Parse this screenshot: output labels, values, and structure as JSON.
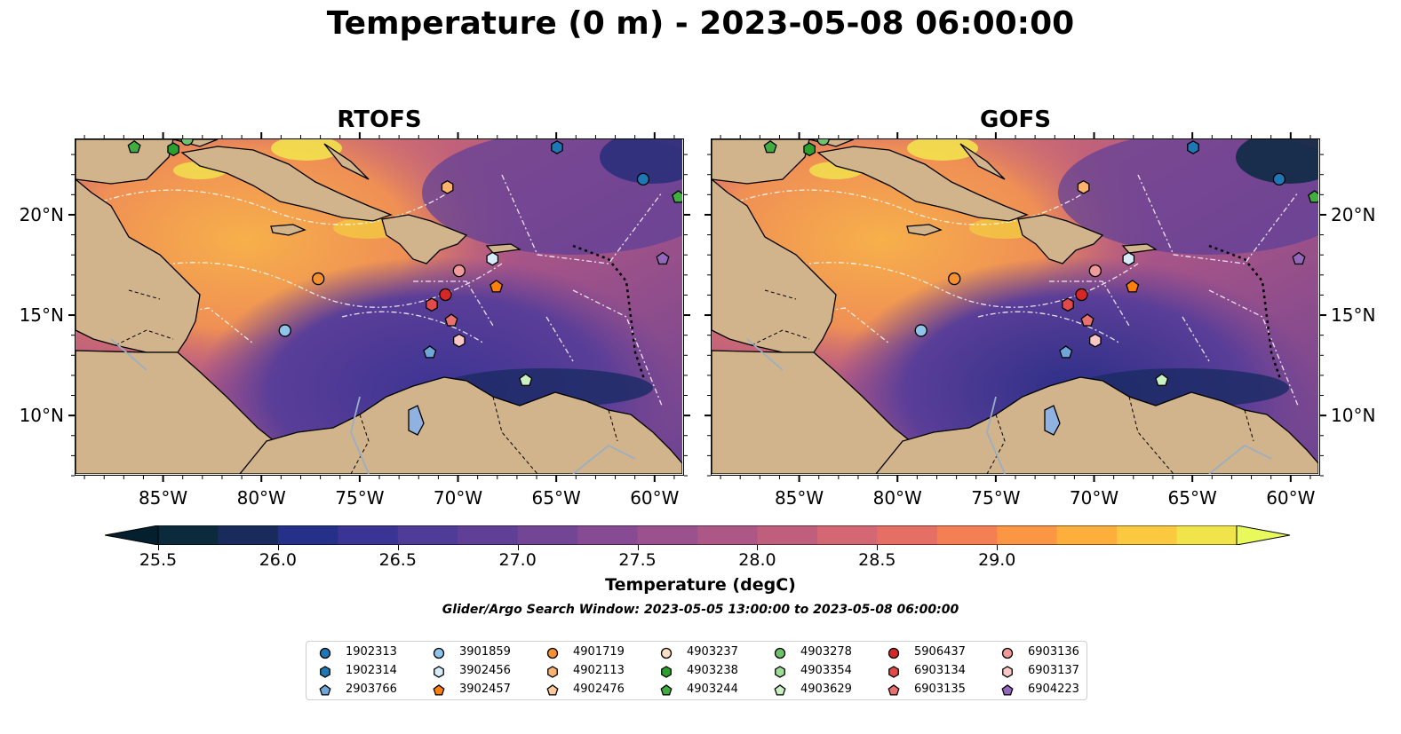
{
  "title": "Temperature (0 m) - 2023-05-08 06:00:00",
  "panels": [
    {
      "title": "RTOFS"
    },
    {
      "title": "GOFS"
    }
  ],
  "lon_ticks": [
    "85°W",
    "80°W",
    "75°W",
    "70°W",
    "65°W",
    "60°W"
  ],
  "lat_ticks": [
    "20°N",
    "15°N",
    "10°N"
  ],
  "colorbar": {
    "label": "Temperature (degC)",
    "ticks": [
      "25.5",
      "26.0",
      "26.5",
      "27.0",
      "27.5",
      "28.0",
      "28.5",
      "29.0"
    ],
    "colors": [
      "#0b2a3c",
      "#182b5c",
      "#253189",
      "#3a3495",
      "#4f3c98",
      "#603f96",
      "#734595",
      "#864b92",
      "#9a518d",
      "#ad5786",
      "#c05e7d",
      "#d46774",
      "#e56f65",
      "#f47f55",
      "#fb9645",
      "#fdae3b",
      "#fbc93f",
      "#f1e44b"
    ],
    "min_color": "#04202e",
    "max_color": "#e8fa5b"
  },
  "search_window": "Glider/Argo Search Window: 2023-05-05 13:00:00 to 2023-05-08 06:00:00",
  "legend": [
    {
      "id": "1902313",
      "marker": "circle",
      "color": "#1f77b4"
    },
    {
      "id": "1902314",
      "marker": "hexagon",
      "color": "#1f77b4"
    },
    {
      "id": "2903766",
      "marker": "pentagon",
      "color": "#6fa6d8"
    },
    {
      "id": "3901859",
      "marker": "circle",
      "color": "#8fc5ea"
    },
    {
      "id": "3902456",
      "marker": "hexagon",
      "color": "#d6ecfb"
    },
    {
      "id": "3902457",
      "marker": "pentagon",
      "color": "#ff7f0e"
    },
    {
      "id": "4901719",
      "marker": "circle",
      "color": "#f7902e"
    },
    {
      "id": "4902113",
      "marker": "hexagon",
      "color": "#fbb36e"
    },
    {
      "id": "4902476",
      "marker": "pentagon",
      "color": "#fcc99a"
    },
    {
      "id": "4903237",
      "marker": "circle",
      "color": "#fde0c4"
    },
    {
      "id": "4903238",
      "marker": "hexagon",
      "color": "#2ca02c"
    },
    {
      "id": "4903244",
      "marker": "pentagon",
      "color": "#41ad41"
    },
    {
      "id": "4903278",
      "marker": "circle",
      "color": "#6cc36c"
    },
    {
      "id": "4903354",
      "marker": "hexagon",
      "color": "#9edc98"
    },
    {
      "id": "4903629",
      "marker": "pentagon",
      "color": "#c8f0c2"
    },
    {
      "id": "5906437",
      "marker": "circle",
      "color": "#d62728"
    },
    {
      "id": "6903134",
      "marker": "hexagon",
      "color": "#e04a4a"
    },
    {
      "id": "6903135",
      "marker": "pentagon",
      "color": "#ea7070"
    },
    {
      "id": "6903136",
      "marker": "circle",
      "color": "#f29a9a"
    },
    {
      "id": "6903137",
      "marker": "hexagon",
      "color": "#fbc6c6"
    },
    {
      "id": "6904223",
      "marker": "pentagon",
      "color": "#9467bd"
    }
  ],
  "floats": [
    {
      "id": "4903244",
      "marker": "pentagon",
      "color": "#41ad41",
      "lon": -86.5,
      "lat": 23.4
    },
    {
      "id": "4903238",
      "marker": "hexagon",
      "color": "#2ca02c",
      "lon": -84.5,
      "lat": 23.3
    },
    {
      "id": "4903278",
      "marker": "circle",
      "color": "#6cc36c",
      "lon": -83.8,
      "lat": 23.8
    },
    {
      "id": "1902314",
      "marker": "hexagon",
      "color": "#1f77b4",
      "lon": -64.9,
      "lat": 23.4
    },
    {
      "id": "1902313",
      "marker": "circle",
      "color": "#1f77b4",
      "lon": -60.5,
      "lat": 21.8
    },
    {
      "id": "4903244",
      "marker": "pentagon",
      "color": "#41ad41",
      "lon": -58.7,
      "lat": 20.9
    },
    {
      "id": "4902113",
      "marker": "hexagon",
      "color": "#fbb36e",
      "lon": -70.5,
      "lat": 21.4
    },
    {
      "id": "3902456",
      "marker": "hexagon",
      "color": "#d6ecfb",
      "lon": -68.2,
      "lat": 17.8
    },
    {
      "id": "6904223",
      "marker": "pentagon",
      "color": "#9467bd",
      "lon": -59.5,
      "lat": 17.8
    },
    {
      "id": "6903136",
      "marker": "circle",
      "color": "#f29a9a",
      "lon": -69.9,
      "lat": 17.2
    },
    {
      "id": "4901719",
      "marker": "circle",
      "color": "#f7902e",
      "lon": -77.1,
      "lat": 16.8
    },
    {
      "id": "3902457",
      "marker": "pentagon",
      "color": "#ff7f0e",
      "lon": -68.0,
      "lat": 16.4
    },
    {
      "id": "5906437",
      "marker": "circle",
      "color": "#d62728",
      "lon": -70.6,
      "lat": 16.0
    },
    {
      "id": "6903134",
      "marker": "hexagon",
      "color": "#e04a4a",
      "lon": -71.3,
      "lat": 15.5
    },
    {
      "id": "6903135",
      "marker": "pentagon",
      "color": "#ea7070",
      "lon": -70.3,
      "lat": 14.7
    },
    {
      "id": "3901859",
      "marker": "circle",
      "color": "#8fc5ea",
      "lon": -78.8,
      "lat": 14.2
    },
    {
      "id": "6903137",
      "marker": "hexagon",
      "color": "#fbc6c6",
      "lon": -69.9,
      "lat": 13.7
    },
    {
      "id": "2903766",
      "marker": "pentagon",
      "color": "#6fa6d8",
      "lon": -71.4,
      "lat": 13.1
    },
    {
      "id": "4903629",
      "marker": "pentagon",
      "color": "#c8f0c2",
      "lon": -66.5,
      "lat": 11.7
    }
  ],
  "map_extent": {
    "lon": [
      -89.5,
      -58.5
    ],
    "lat": [
      7.0,
      23.8
    ]
  }
}
